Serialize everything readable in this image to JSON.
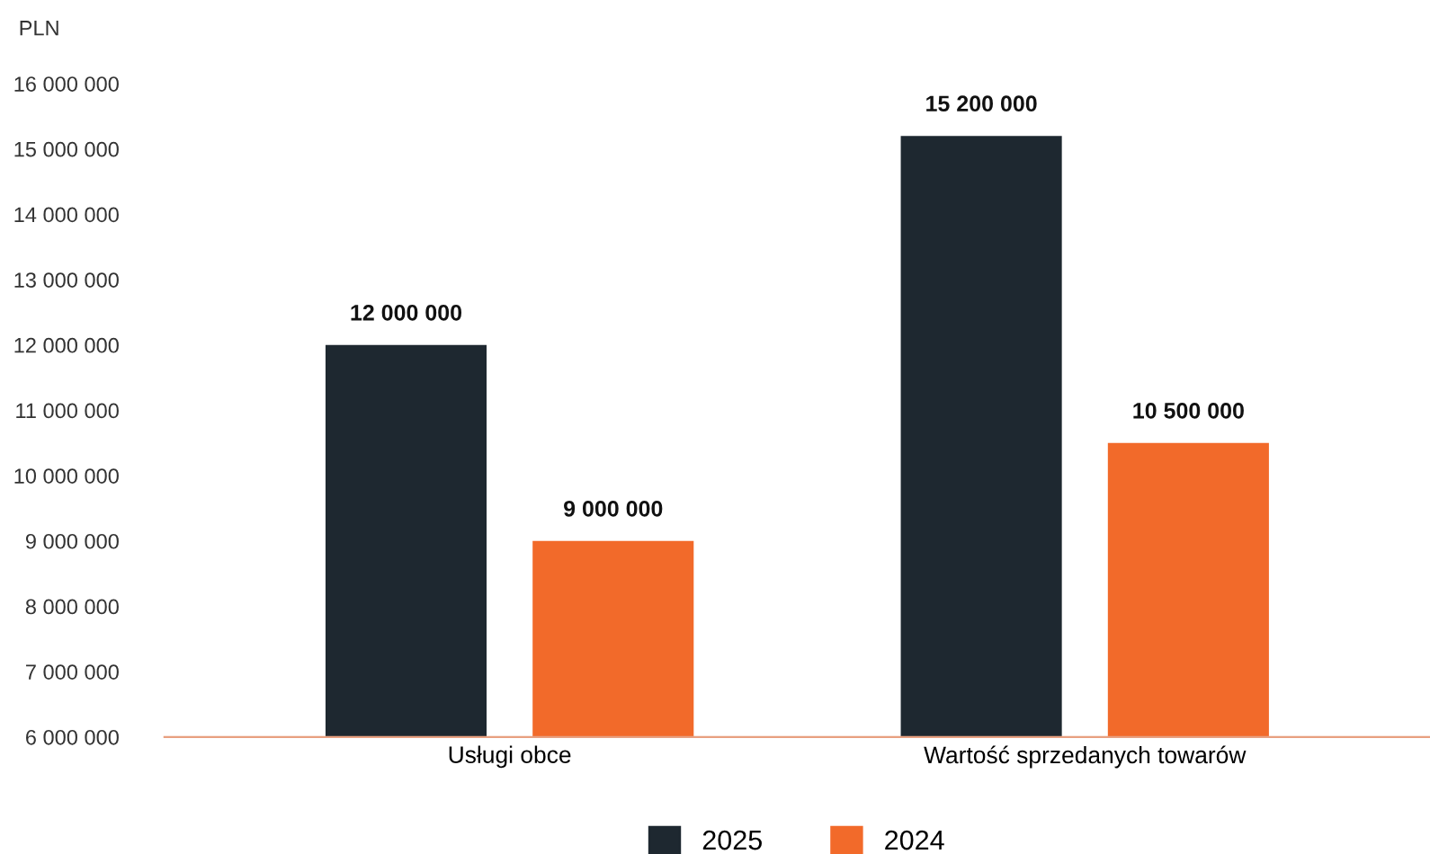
{
  "chart_data": {
    "type": "bar",
    "ylabel": "PLN",
    "categories": [
      "Usługi obce",
      "Wartość sprzedanych towarów"
    ],
    "series": [
      {
        "name": "2025",
        "color": "#1e2830",
        "values": [
          12000000,
          15200000
        ],
        "value_labels": [
          "12 000 000",
          "15 200 000"
        ]
      },
      {
        "name": "2024",
        "color": "#f26a2a",
        "values": [
          9000000,
          10500000
        ],
        "value_labels": [
          "9 000 000",
          "10 500 000"
        ]
      }
    ],
    "ylim": [
      6000000,
      16000000
    ],
    "yticks": [
      {
        "value": 6000000,
        "label": "6 000 000"
      },
      {
        "value": 7000000,
        "label": "7 000 000"
      },
      {
        "value": 8000000,
        "label": "8 000 000"
      },
      {
        "value": 9000000,
        "label": "9 000 000"
      },
      {
        "value": 10000000,
        "label": "10 000 000"
      },
      {
        "value": 11000000,
        "label": "11 000 000"
      },
      {
        "value": 12000000,
        "label": "12 000 000"
      },
      {
        "value": 13000000,
        "label": "13 000 000"
      },
      {
        "value": 14000000,
        "label": "14 000 000"
      },
      {
        "value": 15000000,
        "label": "15 000 000"
      },
      {
        "value": 16000000,
        "label": "16 000 000"
      }
    ],
    "grid": false,
    "legend": "bottom"
  }
}
